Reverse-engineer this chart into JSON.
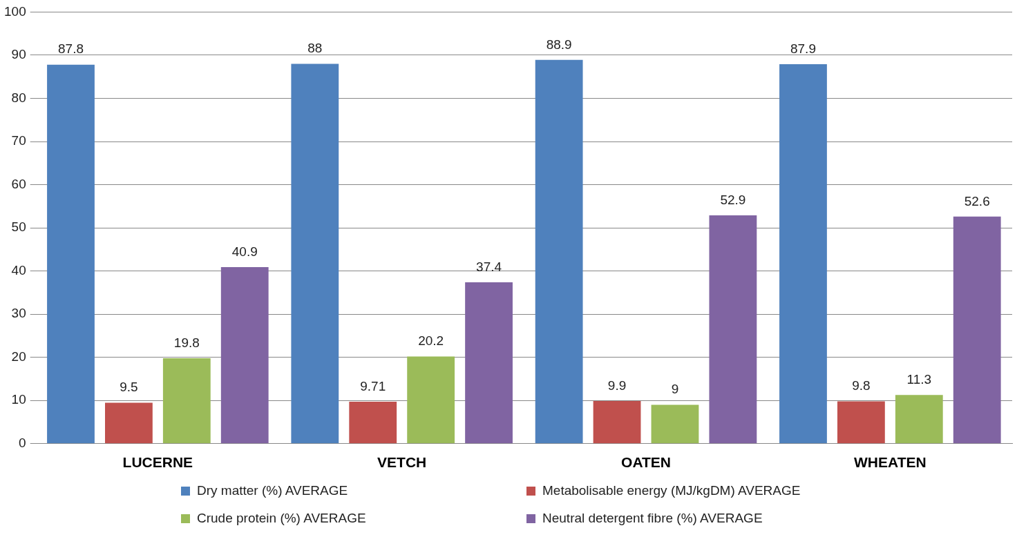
{
  "chart_data": {
    "type": "bar",
    "categories": [
      "LUCERNE",
      "VETCH",
      "OATEN",
      "WHEATEN"
    ],
    "series": [
      {
        "name": "Dry matter (%) AVERAGE",
        "color": "#4f81bd",
        "values": [
          87.8,
          88,
          88.9,
          87.9
        ]
      },
      {
        "name": "Metabolisable energy (MJ/kgDM) AVERAGE",
        "color": "#c0504d",
        "values": [
          9.5,
          9.71,
          9.9,
          9.8
        ]
      },
      {
        "name": "Crude protein (%) AVERAGE",
        "color": "#9bbb59",
        "values": [
          19.8,
          20.2,
          9,
          11.3
        ]
      },
      {
        "name": "Neutral detergent fibre (%) AVERAGE",
        "color": "#8064a2",
        "values": [
          40.9,
          37.4,
          52.9,
          52.6
        ]
      }
    ],
    "ylim": [
      0,
      100
    ],
    "yticks": [
      0,
      10,
      20,
      30,
      40,
      50,
      60,
      70,
      80,
      90,
      100
    ],
    "grid": "y",
    "legend": "bottom",
    "data_labels": true
  }
}
